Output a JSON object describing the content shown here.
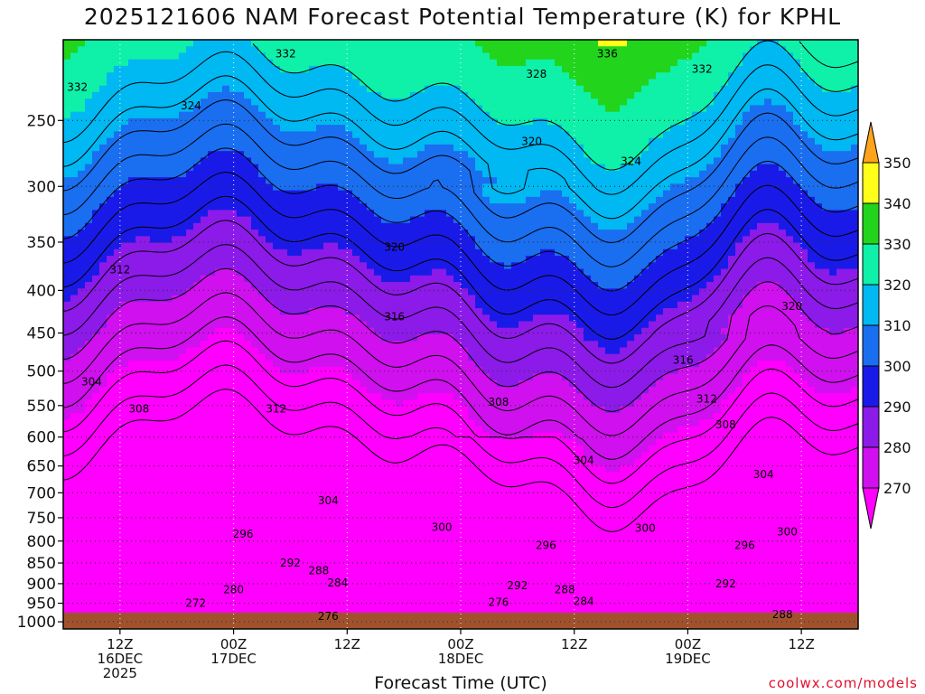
{
  "title": "2025121606 NAM Forecast Potential Temperature (K) for KPHL",
  "credit": "coolwx.com/models",
  "chart_data": {
    "type": "heatmap",
    "title": "2025121606 NAM Forecast Potential Temperature (K) for KPHL",
    "xlabel": "Forecast Time (UTC)",
    "y_scale": "log",
    "y_reversed": true,
    "ylim": [
      1020,
      200
    ],
    "xlim_hours": [
      0,
      84
    ],
    "y_ticks": [
      250,
      300,
      350,
      400,
      450,
      500,
      550,
      600,
      650,
      700,
      750,
      800,
      850,
      900,
      950,
      1000
    ],
    "x_ticks": [
      {
        "hour": 6,
        "lines": [
          "12Z",
          "16DEC",
          "2025"
        ]
      },
      {
        "hour": 18,
        "lines": [
          "00Z",
          "17DEC"
        ]
      },
      {
        "hour": 30,
        "lines": [
          "12Z"
        ]
      },
      {
        "hour": 42,
        "lines": [
          "00Z",
          "18DEC"
        ]
      },
      {
        "hour": 54,
        "lines": [
          "12Z"
        ]
      },
      {
        "hour": 66,
        "lines": [
          "00Z",
          "19DEC"
        ]
      },
      {
        "hour": 78,
        "lines": [
          "12Z"
        ]
      }
    ],
    "grid": true,
    "colorbar": {
      "levels": [
        270,
        280,
        290,
        300,
        310,
        320,
        330,
        340,
        350
      ],
      "colors": [
        "#ff00ff",
        "#d010ee",
        "#8c1ae8",
        "#1a1ae8",
        "#1a6ef0",
        "#00b8f2",
        "#0ff0a8",
        "#22d41c",
        "#ffff1a",
        "#ffa41a"
      ],
      "placement": "right"
    },
    "contour_labels": [
      {
        "text": "332",
        "hour": 23.5,
        "p": 208
      },
      {
        "text": "336",
        "hour": 57.5,
        "p": 208
      },
      {
        "text": "328",
        "hour": 50,
        "p": 220
      },
      {
        "text": "332",
        "hour": 67.5,
        "p": 217
      },
      {
        "text": "332",
        "hour": 1.5,
        "p": 228
      },
      {
        "text": "324",
        "hour": 13.5,
        "p": 240
      },
      {
        "text": "320",
        "hour": 49.5,
        "p": 265
      },
      {
        "text": "324",
        "hour": 60,
        "p": 280
      },
      {
        "text": "320",
        "hour": 35,
        "p": 355
      },
      {
        "text": "312",
        "hour": 6,
        "p": 378
      },
      {
        "text": "316",
        "hour": 35,
        "p": 430
      },
      {
        "text": "320",
        "hour": 77,
        "p": 418
      },
      {
        "text": "316",
        "hour": 65.5,
        "p": 485
      },
      {
        "text": "304",
        "hour": 3,
        "p": 515
      },
      {
        "text": "308",
        "hour": 8,
        "p": 555
      },
      {
        "text": "312",
        "hour": 22.5,
        "p": 555
      },
      {
        "text": "308",
        "hour": 46,
        "p": 545
      },
      {
        "text": "312",
        "hour": 68,
        "p": 540
      },
      {
        "text": "308",
        "hour": 70,
        "p": 580
      },
      {
        "text": "304",
        "hour": 55,
        "p": 640
      },
      {
        "text": "304",
        "hour": 74,
        "p": 665
      },
      {
        "text": "304",
        "hour": 28,
        "p": 715
      },
      {
        "text": "300",
        "hour": 40,
        "p": 770
      },
      {
        "text": "300",
        "hour": 61.5,
        "p": 772
      },
      {
        "text": "300",
        "hour": 76.5,
        "p": 780
      },
      {
        "text": "296",
        "hour": 19,
        "p": 785
      },
      {
        "text": "296",
        "hour": 51,
        "p": 810
      },
      {
        "text": "296",
        "hour": 72,
        "p": 810
      },
      {
        "text": "292",
        "hour": 24,
        "p": 850
      },
      {
        "text": "288",
        "hour": 27,
        "p": 868
      },
      {
        "text": "284",
        "hour": 29,
        "p": 898
      },
      {
        "text": "292",
        "hour": 48,
        "p": 905
      },
      {
        "text": "288",
        "hour": 53,
        "p": 915
      },
      {
        "text": "292",
        "hour": 70,
        "p": 900
      },
      {
        "text": "280",
        "hour": 18,
        "p": 915
      },
      {
        "text": "284",
        "hour": 55,
        "p": 945
      },
      {
        "text": "276",
        "hour": 46,
        "p": 948
      },
      {
        "text": "272",
        "hour": 14,
        "p": 950
      },
      {
        "text": "276",
        "hour": 28,
        "p": 985
      },
      {
        "text": "288",
        "hour": 76,
        "p": 980
      }
    ]
  }
}
